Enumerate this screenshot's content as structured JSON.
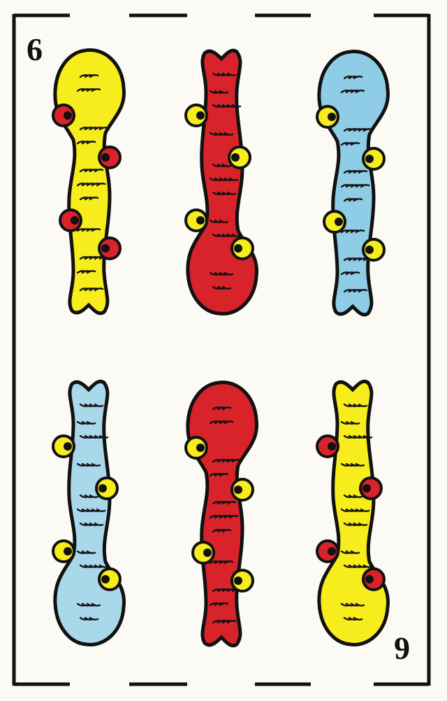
{
  "card": {
    "suit": "bastos",
    "rank_top": "6",
    "rank_bottom": "6"
  },
  "clubs": [
    {
      "color": "#f7ec1c",
      "knot": "#d9232b",
      "flipped": false
    },
    {
      "color": "#d9232b",
      "knot": "#f7ec1c",
      "flipped": true
    },
    {
      "color": "#8fcde6",
      "knot": "#f7ec1c",
      "flipped": false
    },
    {
      "color": "#a9d8ea",
      "knot": "#f7ec1c",
      "flipped": true
    },
    {
      "color": "#d9232b",
      "knot": "#f7ec1c",
      "flipped": false
    },
    {
      "color": "#f7ec1c",
      "knot": "#d9232b",
      "flipped": true
    }
  ],
  "colors": {
    "frame": "#111111",
    "background": "#fbfaf5"
  }
}
